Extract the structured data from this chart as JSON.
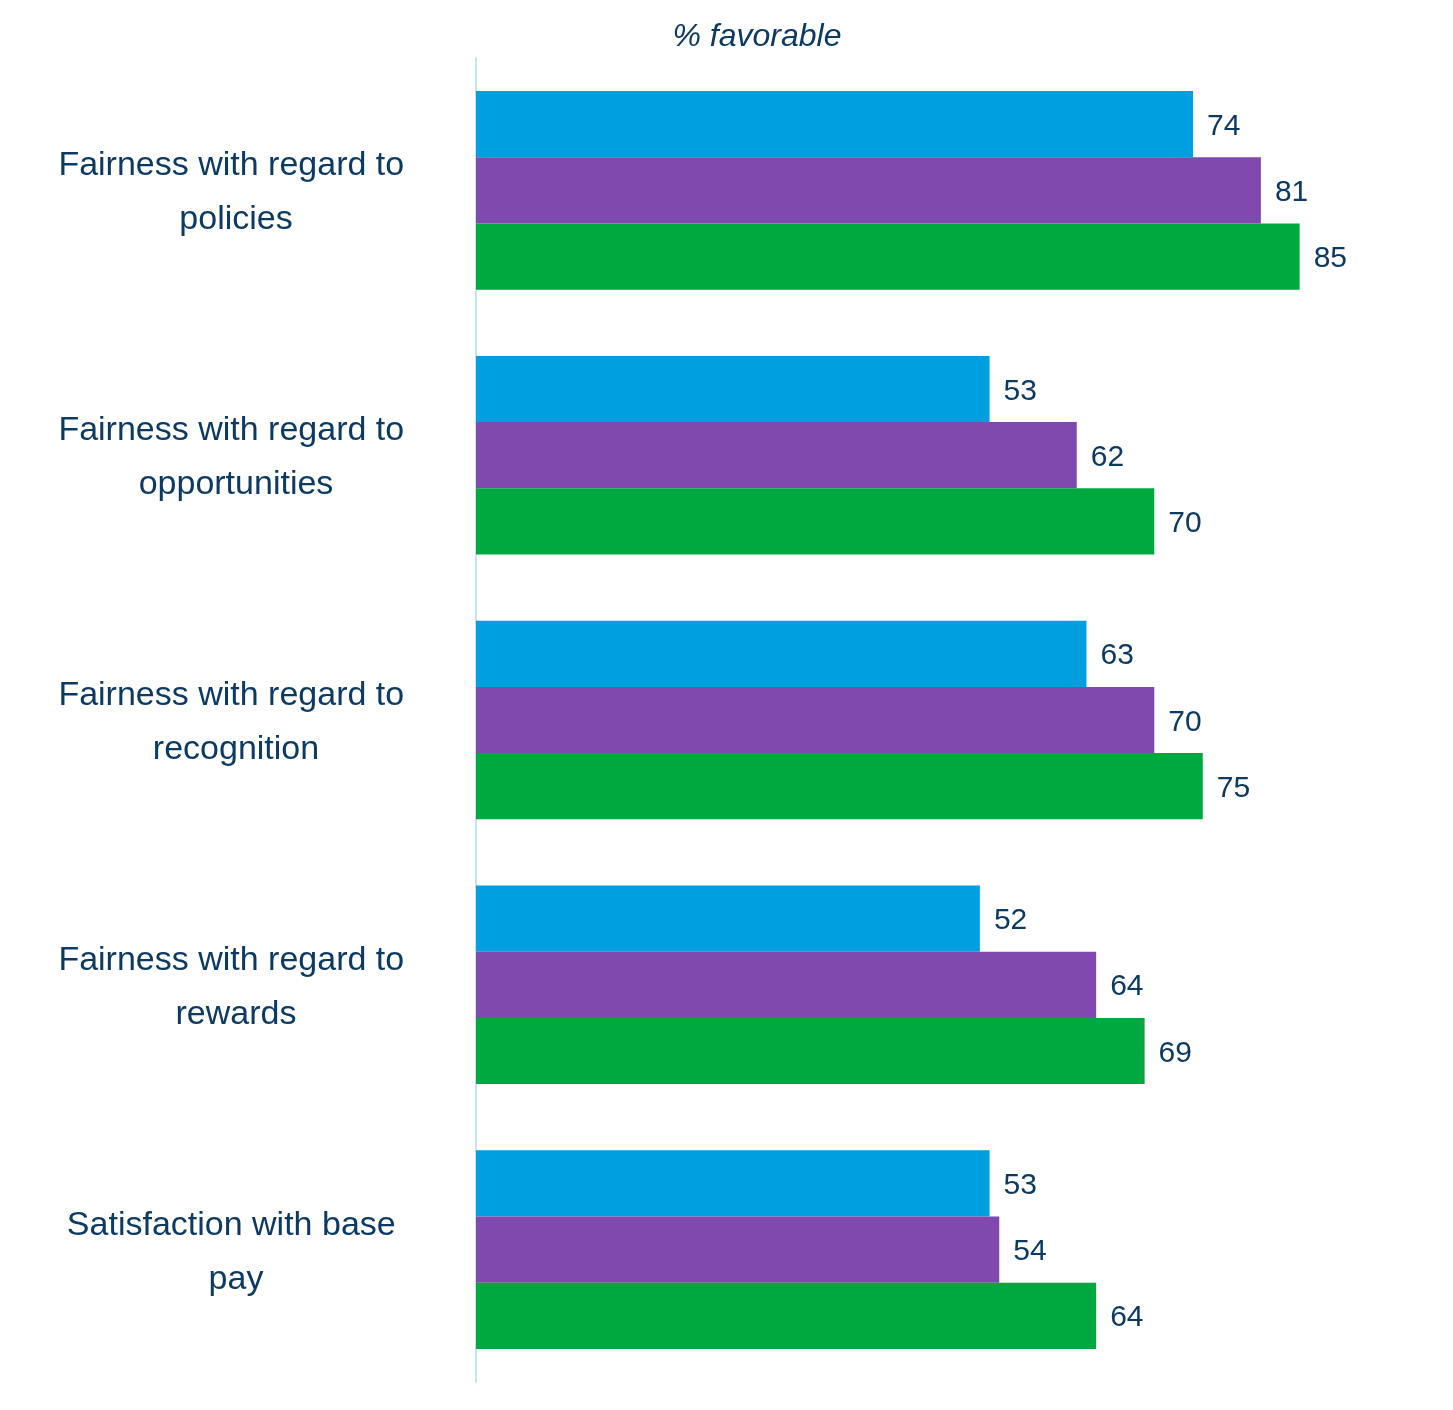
{
  "chart_data": {
    "type": "bar",
    "orientation": "horizontal",
    "title": "% favorable",
    "data_labels": true,
    "categories": [
      "Fairness with regard to policies",
      "Fairness with regard to opportunities",
      "Fairness with regard to recognition",
      "Fairness with regard to rewards",
      "Satisfaction with base pay"
    ],
    "series": [
      {
        "color": "#009fe0",
        "values": [
          74,
          53,
          63,
          52,
          53
        ]
      },
      {
        "color": "#8049ad",
        "values": [
          81,
          62,
          70,
          64,
          54
        ]
      },
      {
        "color": "#00a940",
        "values": [
          85,
          70,
          75,
          69,
          64
        ]
      }
    ]
  }
}
